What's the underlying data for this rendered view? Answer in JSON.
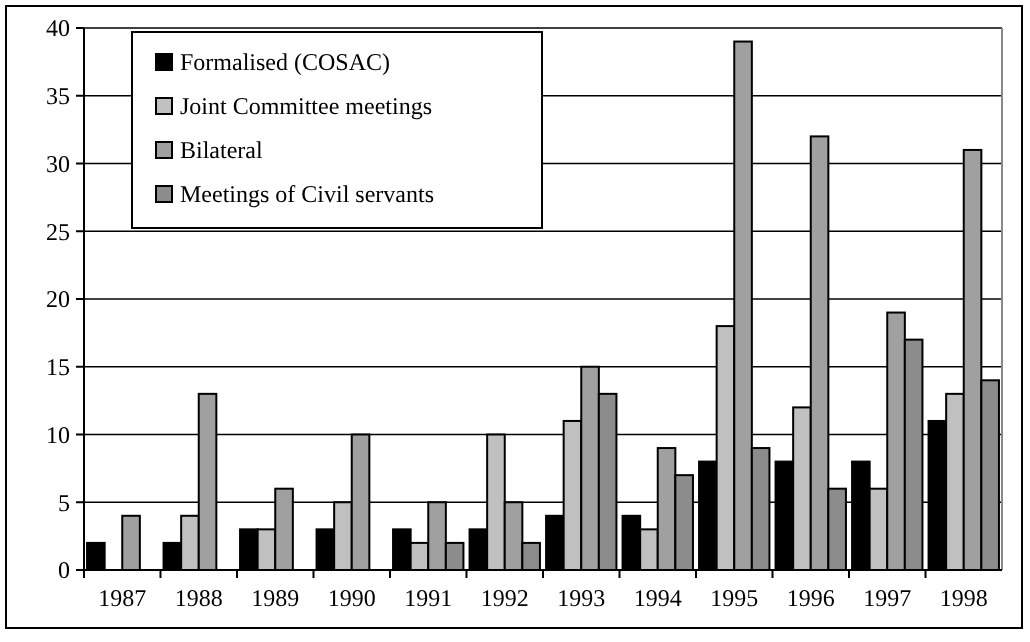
{
  "chart_data": {
    "type": "bar",
    "categories": [
      "1987",
      "1988",
      "1989",
      "1990",
      "1991",
      "1992",
      "1993",
      "1994",
      "1995",
      "1996",
      "1997",
      "1998"
    ],
    "series": [
      {
        "name": "Formalised (COSAC)",
        "color": "#000000",
        "values": [
          2,
          2,
          3,
          3,
          3,
          3,
          4,
          4,
          8,
          8,
          8,
          11
        ]
      },
      {
        "name": "Joint Committee meetings",
        "color": "#c0c0c0",
        "values": [
          0,
          4,
          3,
          5,
          2,
          10,
          11,
          3,
          18,
          12,
          6,
          13
        ]
      },
      {
        "name": "Bilateral",
        "color": "#a0a0a0",
        "values": [
          4,
          13,
          6,
          10,
          5,
          5,
          15,
          9,
          39,
          32,
          19,
          31
        ]
      },
      {
        "name": "Meetings of Civil servants",
        "color": "#8c8c8c",
        "values": [
          0,
          0,
          0,
          0,
          2,
          2,
          13,
          7,
          9,
          6,
          17,
          14
        ]
      }
    ],
    "ylim": [
      0,
      40
    ],
    "yticks": [
      0,
      5,
      10,
      15,
      20,
      25,
      30,
      35,
      40
    ],
    "grid": "y",
    "legend": "top left"
  }
}
